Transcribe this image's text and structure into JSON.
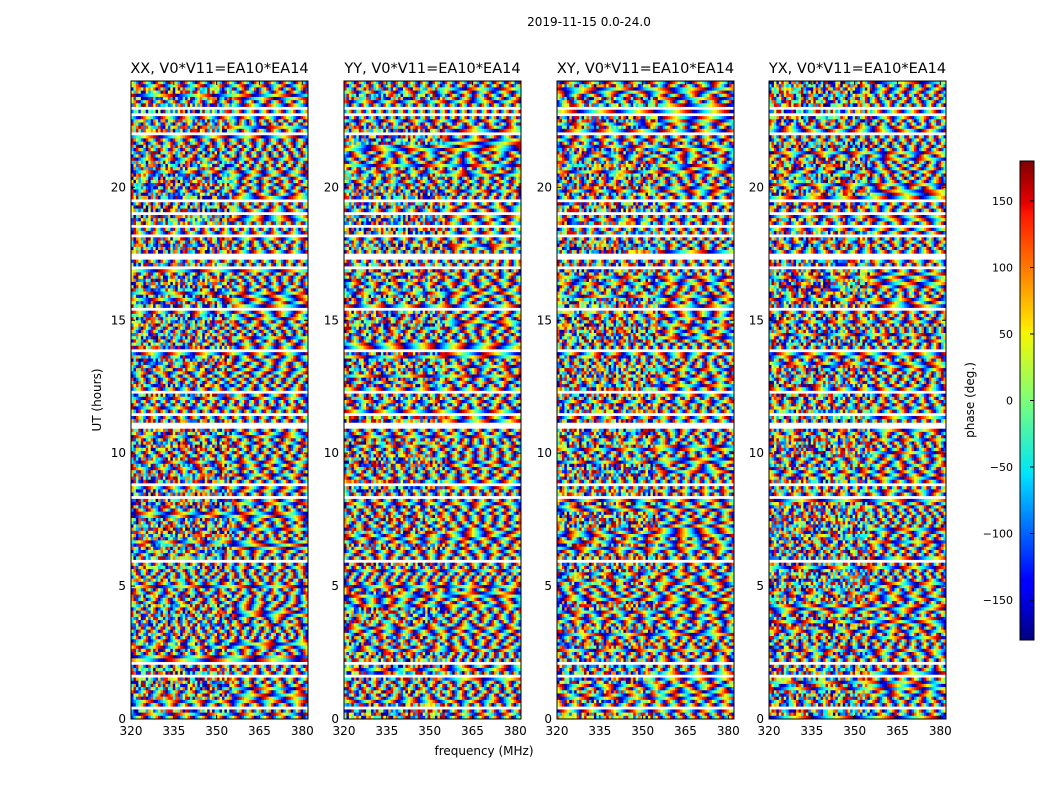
{
  "chart_data": {
    "type": "heatmap",
    "title": "2019-11-15 0.0-24.0",
    "xlabel": "frequency (MHz)",
    "ylabel": "UT (hours)",
    "xlim": [
      320,
      382
    ],
    "ylim": [
      0,
      24
    ],
    "x_ticks": [
      320,
      335,
      350,
      365,
      380
    ],
    "y_ticks": [
      0,
      5,
      10,
      15,
      20
    ],
    "panels": [
      {
        "title": "XX, V0*V11=EA10*EA14"
      },
      {
        "title": "YY, V0*V11=EA10*EA14"
      },
      {
        "title": "XY, V0*V11=EA10*EA14"
      },
      {
        "title": "YX, V0*V11=EA10*EA14"
      }
    ],
    "colorbar": {
      "label": "phase (deg.)",
      "range": [
        -180,
        180
      ],
      "ticks": [
        -150,
        -100,
        -50,
        0,
        50,
        100,
        150
      ],
      "tick_labels": [
        "−150",
        "−100",
        "−50",
        "0",
        "50",
        "100",
        "150"
      ],
      "colormap": "jet"
    },
    "flagged_ut_bands": [
      [
        0.35,
        0.45
      ],
      [
        0.9,
        0.95
      ],
      [
        1.6,
        1.65
      ],
      [
        2.05,
        2.2
      ],
      [
        3.0,
        3.05
      ],
      [
        5.9,
        6.05
      ],
      [
        6.9,
        6.95
      ],
      [
        7.55,
        7.6
      ],
      [
        8.3,
        8.35
      ],
      [
        8.75,
        8.9
      ],
      [
        9.45,
        9.5
      ],
      [
        10.4,
        10.45
      ],
      [
        10.95,
        11.2
      ],
      [
        11.45,
        11.5
      ],
      [
        12.3,
        12.35
      ],
      [
        13.3,
        13.35
      ],
      [
        13.75,
        13.9
      ],
      [
        14.6,
        14.65
      ],
      [
        15.4,
        15.45
      ],
      [
        16.95,
        17.0
      ],
      [
        17.3,
        17.55
      ],
      [
        18.1,
        18.2
      ],
      [
        18.5,
        18.55
      ],
      [
        19.0,
        19.05
      ],
      [
        19.45,
        19.6
      ],
      [
        20.95,
        21.05
      ],
      [
        22.0,
        22.05
      ],
      [
        22.65,
        22.75
      ],
      [
        22.9,
        23.05
      ],
      [
        24.0,
        24.0
      ]
    ]
  }
}
